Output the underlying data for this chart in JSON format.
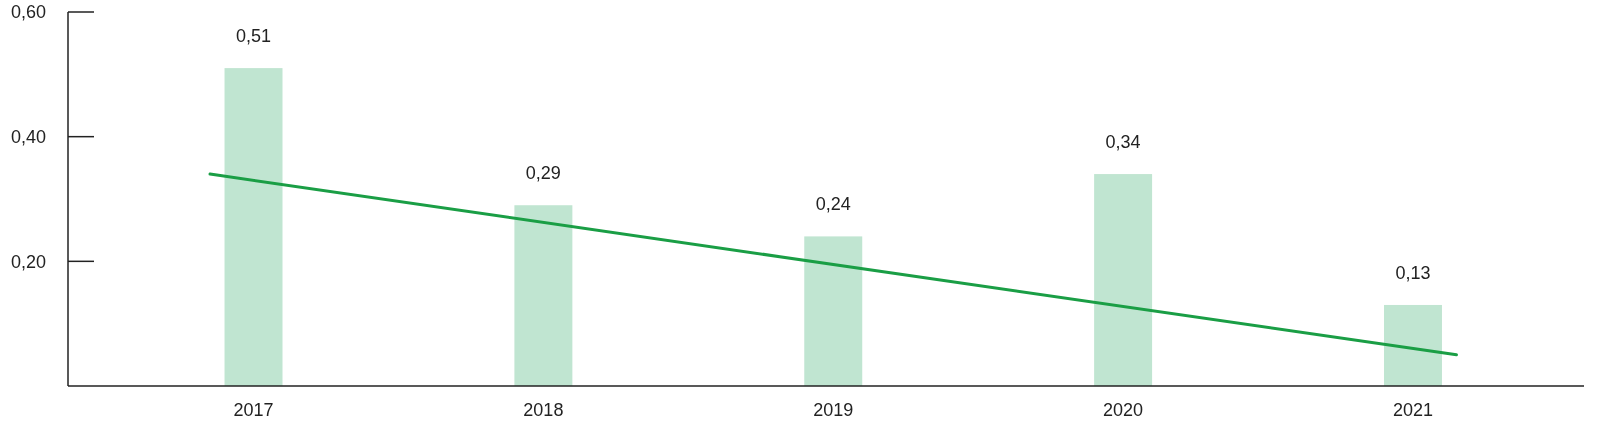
{
  "chart_data": {
    "type": "bar",
    "x": [
      2017,
      2018,
      2019,
      2020,
      2021
    ],
    "xlim": [
      2016.36,
      2021.59
    ],
    "xticks": [
      2017,
      2018,
      2019,
      2020,
      2021
    ],
    "ylim": [
      0,
      0.6
    ],
    "yticks": [
      {
        "value": 0.2,
        "label": "0,20"
      },
      {
        "value": 0.4,
        "label": "0,40"
      },
      {
        "value": 0.6,
        "label": "0,60"
      }
    ],
    "series": [
      {
        "color": "#c0e5d1",
        "values": [
          0.51,
          0.29,
          0.24,
          0.34,
          0.13
        ],
        "value_labels": [
          "0,51",
          "0,29",
          "0,24",
          "0,34",
          "0,13"
        ]
      },
      {
        "type": "line",
        "color": "#1a9e45",
        "x": [
          2016.85,
          2021.15
        ],
        "values": [
          0.34,
          0.05
        ]
      }
    ]
  }
}
